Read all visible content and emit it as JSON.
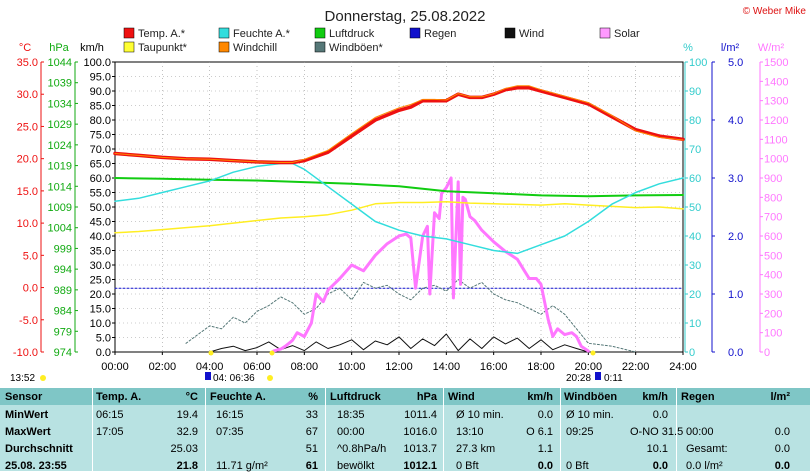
{
  "title": "Donnerstag, 25.08.2022",
  "copyright": "© Weber Mike",
  "legend": [
    {
      "label": "Temp. A.*",
      "color": "#ee1111"
    },
    {
      "label": "Feuchte A.*",
      "color": "#33dddd"
    },
    {
      "label": "Luftdruck",
      "color": "#11cc11"
    },
    {
      "label": "Regen",
      "color": "#1111cc"
    },
    {
      "label": "Wind",
      "color": "#111111"
    },
    {
      "label": "Solar",
      "color": "#ff99ff"
    },
    {
      "label": "Taupunkt*",
      "color": "#ffff33"
    },
    {
      "label": "Windchill",
      "color": "#ff8800"
    },
    {
      "label": "Windböen*",
      "color": "#557777"
    }
  ],
  "chart_data": {
    "type": "line",
    "axes": {
      "temp": {
        "unit": "°C",
        "ticks": [
          "35.0",
          "30.0",
          "25.0",
          "20.0",
          "15.0",
          "10.0",
          "5.0",
          "0.0",
          "-5.0",
          "-10.0"
        ],
        "range": [
          -10,
          35
        ],
        "color": "#ee1111"
      },
      "pressure": {
        "unit": "hPa",
        "ticks": [
          "1044",
          "1039",
          "1034",
          "1029",
          "1024",
          "1019",
          "1014",
          "1009",
          "1004",
          "999",
          "994",
          "989",
          "984",
          "979",
          "974"
        ],
        "range": [
          974,
          1044
        ],
        "color": "#11aa11"
      },
      "wind": {
        "unit": "km/h",
        "ticks": [
          "100.0",
          "95.0",
          "90.0",
          "85.0",
          "80.0",
          "75.0",
          "70.0",
          "65.0",
          "60.0",
          "55.0",
          "50.0",
          "45.0",
          "40.0",
          "35.0",
          "30.0",
          "25.0",
          "20.0",
          "15.0",
          "10.0",
          "5.0",
          "0.0"
        ],
        "range": [
          0,
          100
        ],
        "color": "#000000"
      },
      "humidity": {
        "unit": "%",
        "ticks": [
          "100",
          "90",
          "80",
          "70",
          "60",
          "50",
          "40",
          "30",
          "20",
          "10",
          "0"
        ],
        "range": [
          0,
          100
        ],
        "color": "#33cccc"
      },
      "rain": {
        "unit": "l/m²",
        "ticks": [
          "5.0",
          "4.0",
          "3.0",
          "2.0",
          "1.0",
          "0.0"
        ],
        "range": [
          0,
          5
        ],
        "color": "#1111cc"
      },
      "solar": {
        "unit": "W/m²",
        "ticks": [
          "1500",
          "1400",
          "1300",
          "1200",
          "1100",
          "1000",
          "900",
          "800",
          "700",
          "600",
          "500",
          "400",
          "300",
          "200",
          "100",
          "0"
        ],
        "range": [
          0,
          1500
        ],
        "color": "#ff77ff"
      }
    },
    "x_ticks": [
      "00:00",
      "02:00",
      "04:00",
      "06:00",
      "08:00",
      "10:00",
      "12:00",
      "14:00",
      "16:00",
      "18:00",
      "20:00",
      "22:00",
      "24:00"
    ],
    "series": [
      {
        "name": "Temp. A.*",
        "axis": "temp",
        "color": "#ee1111",
        "width": 3.5,
        "x": [
          0,
          1,
          2,
          3,
          4,
          5,
          6,
          7,
          7.5,
          8,
          9,
          10,
          11,
          12,
          12.5,
          13,
          13.5,
          14,
          14.5,
          15,
          15.5,
          16,
          16.5,
          17,
          17.5,
          18,
          19,
          20,
          21,
          22,
          23,
          24
        ],
        "y": [
          20.8,
          20.5,
          20.2,
          20.0,
          19.9,
          19.7,
          19.5,
          19.4,
          19.4,
          19.7,
          21.0,
          23.5,
          26.0,
          27.5,
          28.0,
          29.0,
          29.0,
          29.0,
          30.0,
          29.5,
          29.5,
          30.0,
          30.7,
          31.0,
          31.0,
          30.5,
          29.5,
          28.5,
          26.5,
          24.5,
          23.5,
          23.0
        ]
      },
      {
        "name": "Windchill",
        "axis": "temp",
        "color": "#ff8800",
        "width": 1,
        "x": [
          0,
          1,
          2,
          3,
          4,
          5,
          6,
          7,
          7.5,
          8,
          9,
          10,
          11,
          12,
          12.5,
          13,
          13.5,
          14,
          14.5,
          15,
          15.5,
          16,
          16.5,
          17,
          17.5,
          18,
          19,
          20,
          21,
          22,
          23,
          24
        ],
        "y": [
          20.8,
          20.5,
          20.2,
          20.0,
          19.9,
          19.7,
          19.5,
          19.4,
          19.4,
          19.9,
          21.3,
          23.9,
          26.4,
          27.9,
          28.4,
          29.2,
          29.2,
          29.1,
          30.1,
          29.6,
          29.6,
          30.1,
          30.9,
          31.3,
          31.3,
          30.7,
          29.7,
          28.7,
          26.7,
          24.3,
          23.3,
          22.9
        ]
      },
      {
        "name": "Feuchte A.*",
        "axis": "humidity",
        "color": "#33dddd",
        "width": 1.5,
        "x": [
          0,
          1,
          2,
          3,
          4,
          5,
          6,
          7,
          7.5,
          8,
          9,
          10,
          11,
          12,
          13,
          14,
          15,
          16,
          17,
          18,
          19,
          20,
          21,
          22,
          23,
          24
        ],
        "y": [
          52,
          53,
          55,
          57,
          59,
          62,
          64,
          65,
          65,
          63,
          57,
          51,
          45,
          42,
          40,
          39,
          37,
          35,
          34,
          37,
          40,
          45,
          51,
          55,
          58,
          60
        ]
      },
      {
        "name": "Taupunkt*",
        "axis": "temp",
        "color": "#ffee22",
        "width": 1.5,
        "x": [
          0,
          1,
          2,
          3,
          4,
          5,
          6,
          7,
          8,
          9,
          10,
          11,
          12,
          13,
          14,
          15,
          16,
          17,
          18,
          19,
          20,
          21,
          22,
          23,
          24
        ],
        "y": [
          8.5,
          8.7,
          9.0,
          9.3,
          9.6,
          10.0,
          10.4,
          10.8,
          11.0,
          11.3,
          12.0,
          13.0,
          13.2,
          13.2,
          13.3,
          13.1,
          13.0,
          12.9,
          12.8,
          13.0,
          12.8,
          12.6,
          12.4,
          12.5,
          12.2
        ]
      },
      {
        "name": "Luftdruck",
        "axis": "pressure",
        "color": "#11cc11",
        "width": 2,
        "x": [
          0,
          2,
          4,
          6,
          8,
          10,
          12,
          13,
          14,
          16,
          18,
          20,
          22,
          24
        ],
        "y": [
          1016.0,
          1015.8,
          1015.6,
          1015.4,
          1015.0,
          1014.6,
          1014.0,
          1013.4,
          1012.8,
          1012.3,
          1011.8,
          1011.6,
          1011.8,
          1011.9
        ]
      },
      {
        "name": "Solar",
        "axis": "solar",
        "color": "#ff77ff",
        "width": 3,
        "x": [
          6.7,
          7,
          7.2,
          7.5,
          7.7,
          8,
          8.3,
          8.5,
          8.8,
          9,
          9.5,
          10,
          10.5,
          11,
          11.5,
          12,
          12.3,
          12.5,
          12.7,
          13,
          13.2,
          13.3,
          13.5,
          13.7,
          13.8,
          14,
          14.2,
          14.3,
          14.5,
          14.6,
          14.7,
          14.8,
          15,
          15.2,
          15.5,
          16,
          16.5,
          17,
          17.3,
          17.5,
          17.8,
          18,
          18.3,
          18.5,
          18.7,
          19,
          19.3,
          19.5,
          19.7,
          20
        ],
        "y": [
          5,
          15,
          30,
          60,
          100,
          80,
          150,
          300,
          260,
          320,
          380,
          450,
          420,
          500,
          560,
          600,
          610,
          590,
          330,
          600,
          650,
          300,
          720,
          690,
          820,
          850,
          900,
          280,
          880,
          350,
          800,
          790,
          700,
          680,
          630,
          570,
          520,
          480,
          420,
          380,
          380,
          350,
          170,
          80,
          120,
          90,
          100,
          80,
          30,
          5
        ]
      },
      {
        "name": "Wind",
        "axis": "wind",
        "color": "#111111",
        "width": 1,
        "x": [
          4,
          4.5,
          5,
          5.5,
          6,
          6.5,
          7,
          7.5,
          8,
          8.5,
          9,
          9.5,
          10,
          10.5,
          11,
          11.5,
          12,
          12.5,
          13,
          13.5,
          14,
          14.5,
          15,
          15.5,
          16,
          16.5,
          17,
          17.5,
          18,
          18.5,
          19,
          19.5,
          20
        ],
        "y": [
          0,
          1.2,
          2,
          0.5,
          1.5,
          3.5,
          0.8,
          2.2,
          0.5,
          3.5,
          1.2,
          2.5,
          4.2,
          0.8,
          3.8,
          2.5,
          5.2,
          1.2,
          4.5,
          2.2,
          6.2,
          0.5,
          4.5,
          1.2,
          5.2,
          2.8,
          4.8,
          1.2,
          4.2,
          0.8,
          2.5,
          1.2,
          0
        ]
      },
      {
        "name": "Windböen*",
        "axis": "wind",
        "color": "#557777",
        "width": 1,
        "dashed": true,
        "x": [
          3,
          3.5,
          4,
          4.5,
          5,
          5.5,
          6,
          6.5,
          7,
          7.5,
          8,
          8.5,
          9,
          9.5,
          10,
          10.5,
          11,
          11.5,
          12,
          12.5,
          13,
          13.5,
          14,
          14.5,
          15,
          15.5,
          16,
          16.5,
          17,
          17.5,
          18,
          18.5,
          19,
          19.5,
          20,
          21,
          22
        ],
        "y": [
          3,
          6,
          9,
          8,
          12,
          10,
          14,
          16,
          19,
          17,
          13,
          15,
          20,
          22,
          18,
          24,
          22,
          23,
          20,
          18,
          22,
          23,
          21,
          25,
          22,
          24,
          20,
          18,
          17,
          15,
          13,
          16,
          13,
          8,
          3,
          2,
          0
        ]
      },
      {
        "name": "Regen",
        "axis": "rain",
        "color": "#1111cc",
        "width": 1,
        "dashed": true,
        "x": [
          0,
          24
        ],
        "y": [
          1.1,
          1.1
        ]
      }
    ]
  },
  "overlay": {
    "sunrise_left": "13:52",
    "sunrise_mid": "04: 06:36",
    "sunset_mid": "20:28",
    "sunset_right": "0:11"
  },
  "table": {
    "headers": [
      "Sensor",
      "Temp. A.",
      "°C",
      "Feuchte A.",
      "%",
      "Luftdruck",
      "hPa",
      "Wind",
      "km/h",
      "Windböen",
      "km/h",
      "Regen",
      "l/m²"
    ],
    "rows": [
      {
        "label": "MinWert",
        "cells": [
          "06:15",
          "19.4",
          "16:15",
          "33",
          "18:35",
          "1011.4",
          "Ø 10 min.",
          "0.0",
          "Ø 10 min.",
          "0.0",
          "",
          ""
        ]
      },
      {
        "label": "MaxWert",
        "cells": [
          "17:05",
          "32.9",
          "07:35",
          "67",
          "00:00",
          "1016.0",
          "13:10",
          "O 6.1",
          "09:25",
          "O-NO 31.5",
          "00:00",
          "0.0"
        ]
      },
      {
        "label": "Durchschnitt",
        "cells": [
          "",
          "25.03",
          "",
          "51",
          "^0.8hPa/h",
          "1013.7",
          "27.3 km",
          "1.1",
          "",
          "10.1",
          "Gesamt:",
          "0.0"
        ]
      },
      {
        "label": "25.08. 23:55",
        "cells": [
          "",
          "21.8",
          "11.71 g/m²",
          "61",
          "bewölkt",
          "1012.1",
          "0 Bft",
          "0.0",
          "0 Bft",
          "0.0",
          "0.0 l/m²",
          "0.0"
        ]
      }
    ]
  }
}
